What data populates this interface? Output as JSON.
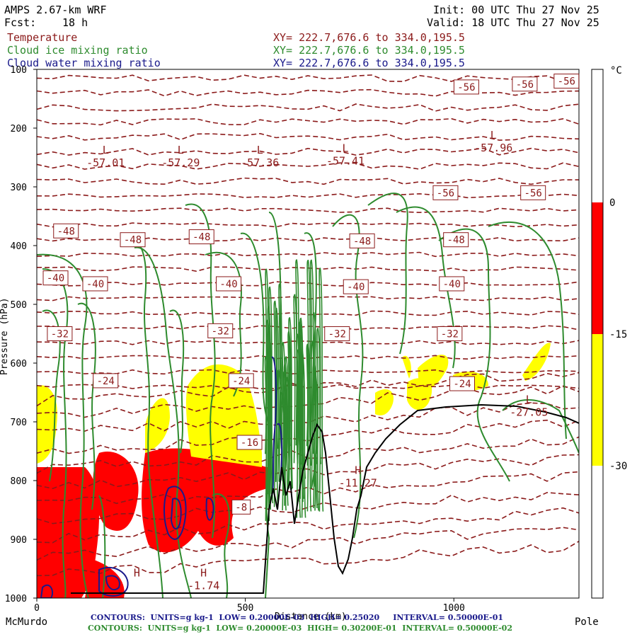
{
  "header": {
    "model": "AMPS 2.67-km WRF",
    "fcst_label": "Fcst:",
    "fcst_value": "18 h",
    "init": "Init: 00 UTC Thu 27 Nov 25",
    "valid": "Valid: 18 UTC Thu 27 Nov 25",
    "fields": [
      {
        "name": "Temperature",
        "xy": "XY= 222.7,676.6 to 334.0,195.5",
        "color": "#8b1a1a"
      },
      {
        "name": "Cloud ice mixing ratio",
        "xy": "XY= 222.7,676.6 to 334.0,195.5",
        "color": "#2e8b2e"
      },
      {
        "name": "Cloud water mixing ratio",
        "xy": "XY= 222.7,676.6 to 334.0,195.5",
        "color": "#1a1a8b"
      }
    ]
  },
  "chart_data": {
    "type": "contour-cross-section",
    "ylabel": "Pressure (hPa)",
    "xlabel": "Distance (km)",
    "y_ticks": [
      100,
      200,
      300,
      400,
      500,
      600,
      700,
      800,
      900,
      1000
    ],
    "ylim": [
      100,
      1000
    ],
    "x_ticks": [
      0,
      500,
      1000
    ],
    "xlim": [
      0,
      1300
    ],
    "x_end_labels": {
      "left": "McMurdo",
      "right": "Pole"
    },
    "colorbar": {
      "unit": "°C",
      "levels": [
        {
          "label": "0",
          "color": "#ff0000"
        },
        {
          "label": "-15",
          "color": "#ffff00"
        },
        {
          "label": "-30",
          "color": "#ffffff"
        }
      ],
      "segments": [
        {
          "from": "top",
          "to": "0",
          "color": "#ffffff"
        },
        {
          "from": "0",
          "to": "-15",
          "color": "#ff0000"
        },
        {
          "from": "-15",
          "to": "-30",
          "color": "#ffff00"
        },
        {
          "from": "-30",
          "to": "bottom",
          "color": "#ffffff"
        }
      ]
    },
    "isotherms": [
      -56,
      -48,
      -40,
      -32,
      -24,
      -16
    ],
    "contour_labels": [
      {
        "text": "-56",
        "x": 1030,
        "p": 130
      },
      {
        "text": "-56",
        "x": 1170,
        "p": 125
      },
      {
        "text": "-56",
        "x": 1270,
        "p": 120
      },
      {
        "text": "-56",
        "x": 980,
        "p": 310
      },
      {
        "text": "-56",
        "x": 1190,
        "p": 310
      },
      {
        "text": "-48",
        "x": 70,
        "p": 375
      },
      {
        "text": "-48",
        "x": 230,
        "p": 390
      },
      {
        "text": "-48",
        "x": 395,
        "p": 385
      },
      {
        "text": "-48",
        "x": 780,
        "p": 392
      },
      {
        "text": "-48",
        "x": 1005,
        "p": 390
      },
      {
        "text": "-40",
        "x": 45,
        "p": 455
      },
      {
        "text": "-40",
        "x": 140,
        "p": 465
      },
      {
        "text": "-40",
        "x": 460,
        "p": 465
      },
      {
        "text": "-40",
        "x": 765,
        "p": 470
      },
      {
        "text": "-40",
        "x": 995,
        "p": 465
      },
      {
        "text": "-32",
        "x": 55,
        "p": 550
      },
      {
        "text": "-32",
        "x": 440,
        "p": 545
      },
      {
        "text": "-32",
        "x": 720,
        "p": 550
      },
      {
        "text": "-32",
        "x": 990,
        "p": 550
      },
      {
        "text": "-24",
        "x": 165,
        "p": 630
      },
      {
        "text": "-24",
        "x": 490,
        "p": 630
      },
      {
        "text": "-24",
        "x": 1020,
        "p": 635
      },
      {
        "text": "-16",
        "x": 510,
        "p": 735
      },
      {
        "text": "-8",
        "x": 490,
        "p": 845
      }
    ],
    "extrema": [
      {
        "kind": "L",
        "value": "-57.01",
        "x": 165,
        "p": 265
      },
      {
        "kind": "L",
        "value": "-57.29",
        "x": 345,
        "p": 265
      },
      {
        "kind": "L",
        "value": "-57.36",
        "x": 535,
        "p": 265
      },
      {
        "kind": "L",
        "value": "-57.41",
        "x": 740,
        "p": 262
      },
      {
        "kind": "L",
        "value": "-57.96",
        "x": 1095,
        "p": 240
      },
      {
        "kind": "L",
        "value": "-27.05",
        "x": 1180,
        "p": 690
      },
      {
        "kind": "H",
        "value": "-11.27",
        "x": 770,
        "p": 810
      },
      {
        "kind": "H",
        "value": "-1.74",
        "x": 400,
        "p": 985
      },
      {
        "kind": "H",
        "value": "",
        "x": 240,
        "p": 985
      }
    ],
    "footer": [
      {
        "text": "CONTOURS:  UNITS=g kg-1  LOW= 0.20000E-03  HIGH= 0.25020     INTERVAL= 0.50000E-01",
        "color": "#1a1a8b"
      },
      {
        "text": "CONTOURS:  UNITS=g kg-1  LOW= 0.20000E-03  HIGH= 0.30200E-01  INTERVAL= 0.50000E-02",
        "color": "#2e8b2e"
      }
    ]
  }
}
